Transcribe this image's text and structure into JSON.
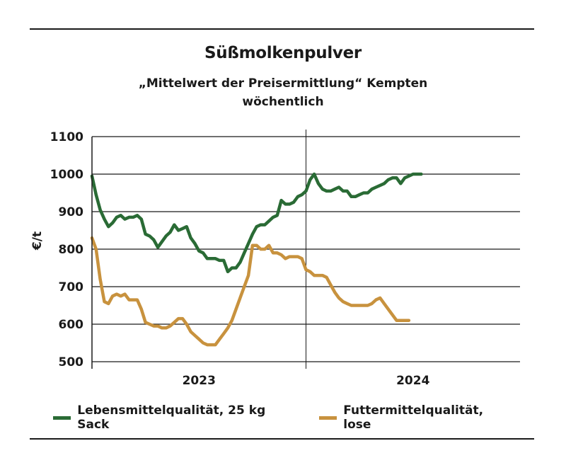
{
  "chart_data": {
    "type": "line",
    "title": "Süßmolkenpulver",
    "subtitle_line1": "„Mittelwert der Preisermittlung“ Kempten",
    "subtitle_line2": "wöchentlich",
    "ylabel": "€/t",
    "ylim": [
      500,
      1100
    ],
    "yticks": [
      "1100",
      "1000",
      "900",
      "800",
      "700",
      "600",
      "500"
    ],
    "xlim": [
      0,
      104
    ],
    "x_year_labels": [
      {
        "label": "2023",
        "x": 26
      },
      {
        "label": "2024",
        "x": 78
      }
    ],
    "x_divider": 52,
    "grid": true,
    "legend_position": "bottom",
    "series": [
      {
        "name": "Lebensmittelqualität, 25 kg Sack",
        "color": "#2a6b35",
        "points": [
          [
            0,
            995
          ],
          [
            1,
            945
          ],
          [
            2,
            905
          ],
          [
            3,
            880
          ],
          [
            4,
            860
          ],
          [
            5,
            870
          ],
          [
            6,
            885
          ],
          [
            7,
            890
          ],
          [
            8,
            880
          ],
          [
            9,
            885
          ],
          [
            10,
            885
          ],
          [
            11,
            890
          ],
          [
            12,
            880
          ],
          [
            13,
            840
          ],
          [
            14,
            835
          ],
          [
            15,
            825
          ],
          [
            16,
            805
          ],
          [
            17,
            820
          ],
          [
            18,
            835
          ],
          [
            19,
            845
          ],
          [
            20,
            865
          ],
          [
            21,
            850
          ],
          [
            22,
            855
          ],
          [
            23,
            860
          ],
          [
            24,
            830
          ],
          [
            25,
            815
          ],
          [
            26,
            795
          ],
          [
            27,
            790
          ],
          [
            28,
            775
          ],
          [
            29,
            775
          ],
          [
            30,
            775
          ],
          [
            31,
            770
          ],
          [
            32,
            770
          ],
          [
            33,
            740
          ],
          [
            34,
            750
          ],
          [
            35,
            750
          ],
          [
            36,
            765
          ],
          [
            37,
            790
          ],
          [
            38,
            815
          ],
          [
            39,
            840
          ],
          [
            40,
            860
          ],
          [
            41,
            865
          ],
          [
            42,
            865
          ],
          [
            43,
            875
          ],
          [
            44,
            885
          ],
          [
            45,
            890
          ],
          [
            46,
            930
          ],
          [
            47,
            920
          ],
          [
            48,
            920
          ],
          [
            49,
            925
          ],
          [
            50,
            940
          ],
          [
            51,
            945
          ],
          [
            52,
            955
          ],
          [
            53,
            985
          ],
          [
            54,
            1000
          ],
          [
            55,
            975
          ],
          [
            56,
            960
          ],
          [
            57,
            955
          ],
          [
            58,
            955
          ],
          [
            59,
            960
          ],
          [
            60,
            965
          ],
          [
            61,
            955
          ],
          [
            62,
            955
          ],
          [
            63,
            940
          ],
          [
            64,
            940
          ],
          [
            65,
            945
          ],
          [
            66,
            950
          ],
          [
            67,
            950
          ],
          [
            68,
            960
          ],
          [
            69,
            965
          ],
          [
            70,
            970
          ],
          [
            71,
            975
          ],
          [
            72,
            985
          ],
          [
            73,
            990
          ],
          [
            74,
            990
          ],
          [
            75,
            975
          ],
          [
            76,
            990
          ],
          [
            77,
            995
          ],
          [
            78,
            1000
          ],
          [
            79,
            1000
          ],
          [
            80,
            1000
          ]
        ]
      },
      {
        "name": "Futtermittelqualität, lose",
        "color": "#c8923e",
        "points": [
          [
            0,
            830
          ],
          [
            1,
            800
          ],
          [
            2,
            720
          ],
          [
            3,
            660
          ],
          [
            4,
            655
          ],
          [
            5,
            675
          ],
          [
            6,
            680
          ],
          [
            7,
            675
          ],
          [
            8,
            680
          ],
          [
            9,
            665
          ],
          [
            10,
            665
          ],
          [
            11,
            665
          ],
          [
            12,
            640
          ],
          [
            13,
            605
          ],
          [
            14,
            600
          ],
          [
            15,
            595
          ],
          [
            16,
            595
          ],
          [
            17,
            590
          ],
          [
            18,
            590
          ],
          [
            19,
            595
          ],
          [
            20,
            605
          ],
          [
            21,
            615
          ],
          [
            22,
            615
          ],
          [
            23,
            600
          ],
          [
            24,
            580
          ],
          [
            25,
            570
          ],
          [
            26,
            560
          ],
          [
            27,
            550
          ],
          [
            28,
            545
          ],
          [
            29,
            545
          ],
          [
            30,
            545
          ],
          [
            31,
            560
          ],
          [
            32,
            575
          ],
          [
            33,
            590
          ],
          [
            34,
            610
          ],
          [
            35,
            640
          ],
          [
            36,
            670
          ],
          [
            37,
            700
          ],
          [
            38,
            730
          ],
          [
            39,
            810
          ],
          [
            40,
            810
          ],
          [
            41,
            800
          ],
          [
            42,
            800
          ],
          [
            43,
            810
          ],
          [
            44,
            790
          ],
          [
            45,
            790
          ],
          [
            46,
            785
          ],
          [
            47,
            775
          ],
          [
            48,
            780
          ],
          [
            49,
            780
          ],
          [
            50,
            780
          ],
          [
            51,
            775
          ],
          [
            52,
            745
          ],
          [
            53,
            740
          ],
          [
            54,
            730
          ],
          [
            55,
            730
          ],
          [
            56,
            730
          ],
          [
            57,
            725
          ],
          [
            58,
            705
          ],
          [
            59,
            685
          ],
          [
            60,
            670
          ],
          [
            61,
            660
          ],
          [
            62,
            655
          ],
          [
            63,
            650
          ],
          [
            64,
            650
          ],
          [
            65,
            650
          ],
          [
            66,
            650
          ],
          [
            67,
            650
          ],
          [
            68,
            655
          ],
          [
            69,
            665
          ],
          [
            70,
            670
          ],
          [
            71,
            655
          ],
          [
            72,
            640
          ],
          [
            73,
            625
          ],
          [
            74,
            610
          ],
          [
            75,
            610
          ],
          [
            76,
            610
          ],
          [
            77,
            610
          ]
        ]
      }
    ]
  }
}
